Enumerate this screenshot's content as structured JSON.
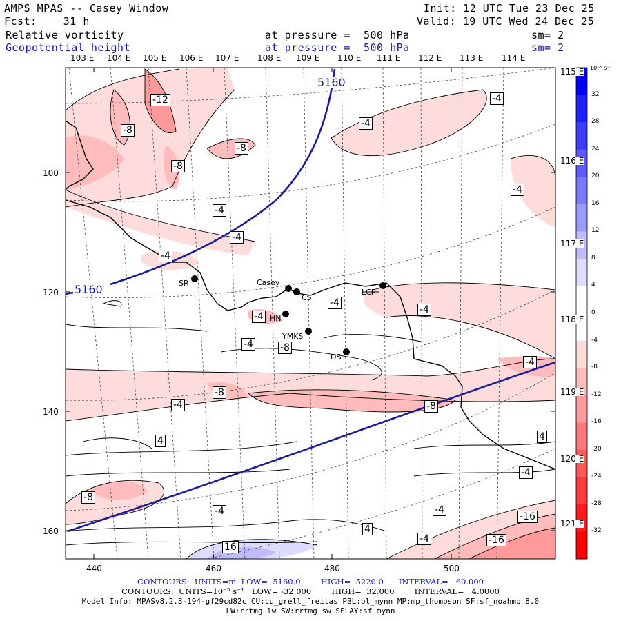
{
  "header": {
    "title": "AMPS MPAS -- Casey Window",
    "forecast": "Fcst:    31 h",
    "init": "Init: 12 UTC Tue 23 Dec 25",
    "valid": "Valid: 19 UTC Wed 24 Dec 25",
    "field1_name": "Relative vorticity",
    "field1_level": "at pressure =  500 hPa",
    "field1_sm": "sm= 2",
    "field2_name": "Geopotential height",
    "field2_level": "at pressure =  500 hPa",
    "field2_sm": "sm= 2"
  },
  "longitude_labels_top": [
    "103 E",
    "104 E",
    "105 E",
    "106 E",
    "107 E",
    "108 E",
    "109 E",
    "110 E",
    "111 E",
    "112 E",
    "113 E",
    "114 E"
  ],
  "longitude_labels_right": [
    "115 E",
    "116 E",
    "117 E",
    "118 E",
    "119 E",
    "120 E",
    "121 E"
  ],
  "y_ticks": [
    "100",
    "120",
    "140",
    "160"
  ],
  "x_ticks": [
    "440",
    "460",
    "480",
    "500"
  ],
  "colorbar": {
    "units": "10⁻⁵ s⁻¹",
    "labels": [
      "32",
      "28",
      "24",
      "20",
      "16",
      "12",
      "8",
      "4",
      "0",
      "-4",
      "-8",
      "-12",
      "-16",
      "-20",
      "-24",
      "-28",
      "-32"
    ],
    "colors": [
      "#0000ff",
      "#2020ff",
      "#3c3cff",
      "#5a5aff",
      "#7a7aff",
      "#9a9aff",
      "#bcbcff",
      "#dcdcff",
      "#ffffff",
      "#ffffff",
      "#ffdcdc",
      "#ffbcbc",
      "#ff9a9a",
      "#ff7a7a",
      "#ff5a5a",
      "#ff3a3a",
      "#ff1a1a",
      "#ff0000"
    ]
  },
  "stations": [
    {
      "code": "SR"
    },
    {
      "code": "Casey"
    },
    {
      "code": "CS"
    },
    {
      "code": "HN"
    },
    {
      "code": "YMKS"
    },
    {
      "code": "DS"
    },
    {
      "code": "LCP"
    }
  ],
  "height_contour_labels": [
    "5160",
    "5160"
  ],
  "vorticity_labels": [
    "-12",
    "-8",
    "-8",
    "-8",
    "-4",
    "-4",
    "-4",
    "-4",
    "-4",
    "-4",
    "-4",
    "-4",
    "-4",
    "-4",
    "-8",
    "-4",
    "-8",
    "-4",
    "-8",
    "4",
    "4",
    "-4",
    "-8",
    "-4",
    "-4",
    "4",
    "-4",
    "-16",
    "-16",
    "16"
  ],
  "footer": {
    "line1": "CONTOURS:  UNITS=m  LOW=  5160.0        HIGH=  5220.0      INTERVAL=   60.000",
    "line2": "CONTOURS:  UNITS=10⁻⁵ s⁻¹   LOW= -32.000        HIGH=  32.000        INTERVAL=   4.0000",
    "line3": "Model Info: MPASv8.2.3-194-gf29cd82c CU:cu_grell_freitas PBL:bl_mynn MP:mp_thompson SF:sf_noahmp 8.0",
    "line4": "LW:rrtmg_lw SW:rrtmg_sw SFLAY:sf_mynn"
  }
}
